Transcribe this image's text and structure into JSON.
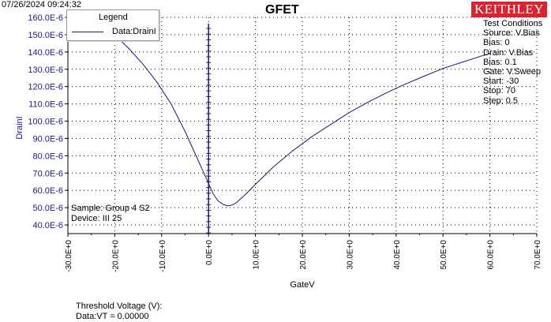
{
  "header": {
    "timestamp": "07/26/2024 09:24:32",
    "logo_text": "KEITHLEY"
  },
  "legend": {
    "title": "Legend",
    "entry": "Data:DrainI"
  },
  "test_conditions": {
    "lines": [
      "Test Conditions",
      "Source: V.Bias",
      " Bias: 0",
      "Drain: V.Bias",
      " Bias: 0.1",
      "Gate: V.Sweep",
      " Start: -30",
      " Stop: 70",
      " Step: 0.5"
    ]
  },
  "sample_info": {
    "sample": "Sample: Group 4 S2",
    "device": "Device: III 25"
  },
  "threshold": {
    "label": "Threshold Voltage (V):",
    "value": "Data:VT = 0.00000"
  },
  "colors": {
    "curve": "#1a1a6e",
    "axis_text": "#1a1a8c",
    "logo_bg": "#d9232e"
  },
  "chart_data": {
    "type": "line",
    "title": "GFET",
    "xlabel": "GateV",
    "ylabel": "DrainI",
    "xlim": [
      -30,
      70
    ],
    "ylim": [
      3.5e-05,
      0.00016
    ],
    "grid": true,
    "legend_position": "top-left",
    "x_tick_labels": [
      "-30.0E+0",
      "-20.0E+0",
      "-10.0E+0",
      "0.0E+0",
      "10.0E+0",
      "20.0E+0",
      "30.0E+0",
      "40.0E+0",
      "50.0E+0",
      "60.0E+0",
      "70.0E+0"
    ],
    "x_ticks": [
      -30,
      -20,
      -10,
      0,
      10,
      20,
      30,
      40,
      50,
      60,
      70
    ],
    "y_tick_labels": [
      "40.0E-6",
      "50.0E-6",
      "60.0E-6",
      "70.0E-6",
      "80.0E-6",
      "90.0E-6",
      "100.0E-6",
      "110.0E-6",
      "120.0E-6",
      "130.0E-6",
      "140.0E-6",
      "150.0E-6",
      "160.0E-6"
    ],
    "y_ticks": [
      4e-05,
      5e-05,
      6e-05,
      7e-05,
      8e-05,
      9e-05,
      0.0001,
      0.00011,
      0.00012,
      0.00013,
      0.00014,
      0.00015,
      0.00016
    ],
    "marker_x": 0,
    "series": [
      {
        "name": "Data:DrainI",
        "x": [
          -20,
          -17,
          -14,
          -11,
          -8,
          -5,
          -3,
          -1,
          0,
          1,
          2,
          3,
          4,
          5,
          6,
          8,
          10,
          14,
          18,
          22,
          26,
          30,
          34,
          38,
          42,
          46,
          50,
          54,
          58,
          60
        ],
        "y": [
          0.00015,
          0.000142,
          0.000133,
          0.0001225,
          0.00011,
          9.4e-05,
          8.2e-05,
          7e-05,
          6.4e-05,
          5.8e-05,
          5.4e-05,
          5.2e-05,
          5.1e-05,
          5.15e-05,
          5.3e-05,
          5.8e-05,
          6.35e-05,
          7.4e-05,
          8.3e-05,
          9.1e-05,
          9.8e-05,
          0.000105,
          0.000111,
          0.0001165,
          0.0001215,
          0.000126,
          0.0001305,
          0.000134,
          0.0001375,
          0.000139
        ]
      }
    ]
  }
}
